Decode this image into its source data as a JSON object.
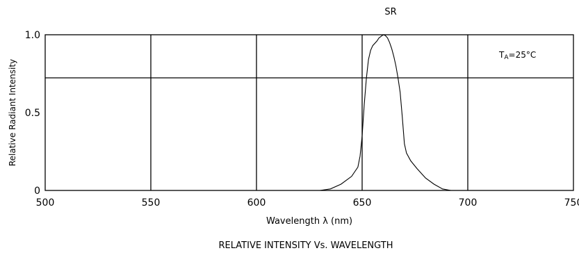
{
  "chart_data": {
    "type": "line",
    "series_label": "SR",
    "title": "RELATIVE INTENSITY Vs. WAVELENGTH",
    "xlabel": "Wavelength λ (nm)",
    "ylabel": "Relative Radiant Intensity",
    "annotation": "TA=25°C",
    "xlim": [
      500,
      750
    ],
    "ylim": [
      0,
      1.0
    ],
    "x_ticks": [
      500,
      550,
      600,
      650,
      700,
      750
    ],
    "x_tick_labels": [
      "500",
      "550",
      "600",
      "650",
      "700",
      "750"
    ],
    "y_ticks": [
      0,
      0.5,
      1.0
    ],
    "y_tick_labels": [
      "0",
      "0.5",
      "1.0"
    ],
    "grid": true,
    "points": [
      [
        630,
        0.0
      ],
      [
        635,
        0.01
      ],
      [
        640,
        0.04
      ],
      [
        645,
        0.09
      ],
      [
        648,
        0.15
      ],
      [
        649,
        0.22
      ],
      [
        650,
        0.35
      ],
      [
        651,
        0.55
      ],
      [
        652,
        0.72
      ],
      [
        653,
        0.84
      ],
      [
        654,
        0.9
      ],
      [
        655,
        0.93
      ],
      [
        657,
        0.96
      ],
      [
        658,
        0.98
      ],
      [
        659,
        0.99
      ],
      [
        660,
        1.0
      ],
      [
        661,
        0.995
      ],
      [
        662,
        0.98
      ],
      [
        663,
        0.95
      ],
      [
        664,
        0.91
      ],
      [
        665,
        0.86
      ],
      [
        666,
        0.8
      ],
      [
        667,
        0.72
      ],
      [
        668,
        0.63
      ],
      [
        669,
        0.47
      ],
      [
        670,
        0.3
      ],
      [
        671,
        0.24
      ],
      [
        673,
        0.19
      ],
      [
        676,
        0.14
      ],
      [
        680,
        0.08
      ],
      [
        684,
        0.04
      ],
      [
        688,
        0.01
      ],
      [
        692,
        0.0
      ]
    ]
  }
}
